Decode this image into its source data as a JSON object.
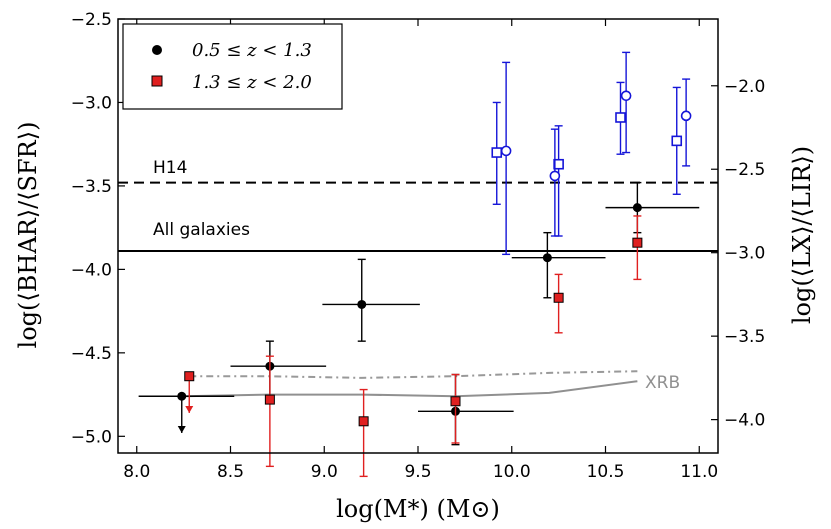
{
  "chart_data": {
    "type": "scatter",
    "xlabel": "log(M*) (M⊙)",
    "ylabel": "log(⟨BHAR⟩/⟨SFR⟩)",
    "ylabel_right": "log(⟨LX⟩/⟨LIR⟩)",
    "xlim": [
      7.9,
      11.1
    ],
    "ylim": [
      -5.1,
      -2.5
    ],
    "ylim_right": [
      -4.2,
      -1.6
    ],
    "x_ticks": [
      "8.0",
      "8.5",
      "9.0",
      "9.5",
      "10.0",
      "10.5",
      "11.0"
    ],
    "y_ticks": [
      "−2.5",
      "−3.0",
      "−3.5",
      "−4.0",
      "−4.5",
      "−5.0"
    ],
    "y_right_ticks": [
      "−2.0",
      "−2.5",
      "−3.0",
      "−3.5",
      "−4.0"
    ],
    "hlines": [
      {
        "name": "H14",
        "y": -3.48,
        "style": "dashed",
        "label": "H14"
      },
      {
        "name": "All galaxies",
        "y": -3.89,
        "style": "solid",
        "label": "All galaxies"
      }
    ],
    "series": [
      {
        "name": "0.5 ≤ z < 1.3",
        "color": "#000000",
        "marker": "circle",
        "points": [
          {
            "x": 8.24,
            "y": -4.76,
            "xerr": [
              0.23,
              0.28
            ],
            "upper_limit": true
          },
          {
            "x": 8.71,
            "y": -4.58,
            "xerr": [
              0.21,
              0.3
            ],
            "yerr": [
              0.19,
              0.15
            ]
          },
          {
            "x": 9.2,
            "y": -4.21,
            "xerr": [
              0.21,
              0.31
            ],
            "yerr": [
              0.22,
              0.27
            ]
          },
          {
            "x": 9.7,
            "y": -4.85,
            "xerr": [
              0.2,
              0.31
            ],
            "yerr": [
              0.2,
              0.22
            ]
          },
          {
            "x": 10.19,
            "y": -3.93,
            "xerr": [
              0.19,
              0.31
            ],
            "yerr": [
              0.24,
              0.15
            ]
          },
          {
            "x": 10.67,
            "y": -3.63,
            "xerr": [
              0.17,
              0.33
            ],
            "yerr": [
              0.15,
              0.15
            ]
          }
        ]
      },
      {
        "name": "1.3 ≤ z < 2.0",
        "color": "#e02020",
        "marker": "square",
        "points": [
          {
            "x": 8.28,
            "y": -4.64,
            "upper_limit": true
          },
          {
            "x": 8.71,
            "y": -4.78,
            "yerr": [
              0.4,
              0.26
            ]
          },
          {
            "x": 9.21,
            "y": -4.91,
            "yerr": [
              0.33,
              0.19
            ]
          },
          {
            "x": 9.7,
            "y": -4.79,
            "yerr": [
              0.25,
              0.16
            ]
          },
          {
            "x": 10.25,
            "y": -4.17,
            "yerr": [
              0.21,
              0.14
            ]
          },
          {
            "x": 10.67,
            "y": -3.84,
            "yerr": [
              0.22,
              0.16
            ]
          }
        ]
      },
      {
        "name": "blue open squares",
        "color": "#1515d8",
        "marker": "open-square",
        "points": [
          {
            "x": 9.92,
            "y": -3.3,
            "yerr": [
              0.31,
              0.3
            ]
          },
          {
            "x": 10.25,
            "y": -3.37,
            "yerr": [
              0.43,
              0.23
            ]
          },
          {
            "x": 10.58,
            "y": -3.09,
            "yerr": [
              0.22,
              0.21
            ]
          },
          {
            "x": 10.88,
            "y": -3.23,
            "yerr": [
              0.32,
              0.32
            ]
          }
        ]
      },
      {
        "name": "blue open circles",
        "color": "#1515d8",
        "marker": "open-circle",
        "points": [
          {
            "x": 9.97,
            "y": -3.29,
            "yerr": [
              0.62,
              0.53
            ]
          },
          {
            "x": 10.23,
            "y": -3.44,
            "yerr": [
              0.36,
              0.28
            ]
          },
          {
            "x": 10.61,
            "y": -2.96,
            "yerr": [
              0.34,
              0.26
            ]
          },
          {
            "x": 10.93,
            "y": -3.08,
            "yerr": [
              0.3,
              0.22
            ]
          }
        ]
      }
    ],
    "curves": [
      {
        "name": "XRB",
        "label": "XRB",
        "color": "#909090",
        "style": "solid",
        "x": [
          8.25,
          8.7,
          9.2,
          9.7,
          10.2,
          10.67
        ],
        "y": [
          -4.76,
          -4.75,
          -4.75,
          -4.76,
          -4.74,
          -4.67
        ]
      },
      {
        "name": "XRB high-z",
        "color": "#999999",
        "style": "dashdot",
        "x": [
          8.28,
          8.7,
          9.2,
          9.7,
          10.2,
          10.67
        ],
        "y": [
          -4.64,
          -4.64,
          -4.65,
          -4.64,
          -4.62,
          -4.61
        ]
      }
    ],
    "legend": {
      "position": "top-left",
      "entries": [
        "0.5 ≤ z < 1.3",
        "1.3 ≤ z < 2.0"
      ]
    },
    "annotations": [
      "H14",
      "All galaxies",
      "XRB"
    ]
  }
}
